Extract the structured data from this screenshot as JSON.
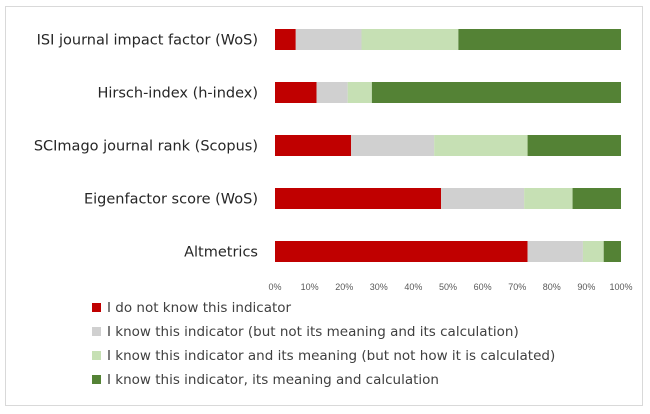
{
  "chart_data": {
    "type": "bar",
    "orientation": "horizontal",
    "stacked": true,
    "categories": [
      "ISI journal impact factor (WoS)",
      "Hirsch-index (h-index)",
      "SCImago journal rank (Scopus)",
      "Eigenfactor score (WoS)",
      "Altmetrics"
    ],
    "series": [
      {
        "name": "I do not know this indicator",
        "color": "#c00000",
        "values": [
          6,
          12,
          22,
          48,
          73
        ]
      },
      {
        "name": "I know this indicator (but not its meaning and its calculation)",
        "color": "#d0d0d0",
        "values": [
          19,
          9,
          24,
          24,
          16
        ]
      },
      {
        "name": "I know this indicator and its meaning (but not how it is calculated)",
        "color": "#c6e0b4",
        "values": [
          28,
          7,
          27,
          14,
          6
        ]
      },
      {
        "name": "I know this indicator, its meaning and calculation",
        "color": "#548235",
        "values": [
          47,
          72,
          27,
          14,
          5
        ]
      }
    ],
    "x_ticks": [
      "0%",
      "10%",
      "20%",
      "30%",
      "40%",
      "50%",
      "60%",
      "70%",
      "80%",
      "90%",
      "100%"
    ],
    "xlim": [
      0,
      100
    ],
    "grid": false,
    "legend_position": "bottom"
  }
}
